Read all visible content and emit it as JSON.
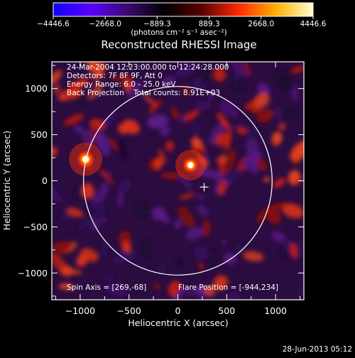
{
  "colorbar": {
    "ticks": [
      "−4446.6",
      "−2668.0",
      "−889.3",
      "889.3",
      "2668.0",
      "4446.6"
    ],
    "units": "(photons cm⁻² s⁻¹ asec⁻²)",
    "stops": [
      "#1000ff",
      "#5a00ff",
      "#3a0a6e",
      "#000000",
      "#5a0000",
      "#ff2a00",
      "#ffb000",
      "#ffffd0"
    ]
  },
  "image": {
    "title": "Reconstructed RHESSI Image",
    "annotation_lines": [
      "24-Mar-2004 12:23:00.000 to 12:24:28.000",
      "Detectors: 7F 8F 9F, Att 0",
      "Energy Range: 6.0 - 25.0 keV",
      "Back Projection    Total counts: 8.91E+03"
    ],
    "spin_axis": "Spin Axis = [269,-68]",
    "flare_position": "Flare Position = [-944,234]"
  },
  "axes": {
    "xlabel": "Heliocentric X (arcsec)",
    "ylabel": "Heliocentric Y (arcsec)",
    "x_ticks": [
      "−1000",
      "−500",
      "0",
      "500",
      "1000"
    ],
    "y_ticks": [
      "1000",
      "500",
      "0",
      "−500",
      "−1000"
    ],
    "x_range": [
      -1290,
      1290
    ],
    "y_range": [
      -1290,
      1290
    ],
    "solar_limb_radius_arcsec": 965,
    "spin_axis_xy": [
      269,
      -68
    ],
    "sources": [
      {
        "x": -944,
        "y": 234,
        "peak": 4446.6
      },
      {
        "x": 130,
        "y": 170,
        "peak": 3400
      }
    ]
  },
  "footer": {
    "timestamp": "28-Jun-2013 05:12"
  }
}
